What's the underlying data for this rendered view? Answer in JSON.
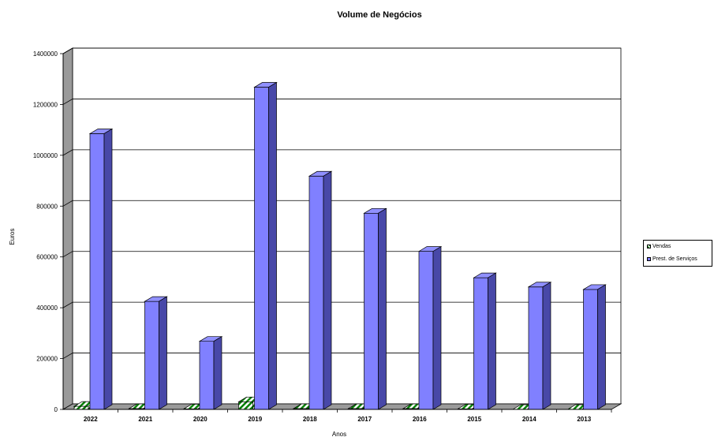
{
  "chart_data": {
    "type": "bar",
    "title": "Volume de Negócios",
    "xlabel": "Anos",
    "ylabel": "Euros",
    "ylim": [
      0,
      1400000
    ],
    "yticks": [
      0,
      200000,
      400000,
      600000,
      800000,
      1000000,
      1200000,
      1400000
    ],
    "categories": [
      "2022",
      "2021",
      "2020",
      "2019",
      "2018",
      "2017",
      "2016",
      "2015",
      "2014",
      "2013"
    ],
    "series": [
      {
        "name": "Vendas",
        "color": "#008000",
        "pattern": "diagonal-stripes-green-white",
        "values": [
          12000,
          3000,
          2000,
          30000,
          3000,
          3000,
          3000,
          2000,
          0,
          0
        ]
      },
      {
        "name": "Prest. de Serviços",
        "color": "#8080ff",
        "values": [
          1085000,
          425000,
          268000,
          1268000,
          918000,
          772000,
          622000,
          518000,
          482000,
          472000
        ]
      }
    ],
    "grid": true,
    "legend": "right",
    "style": "3d-clustered-column"
  }
}
